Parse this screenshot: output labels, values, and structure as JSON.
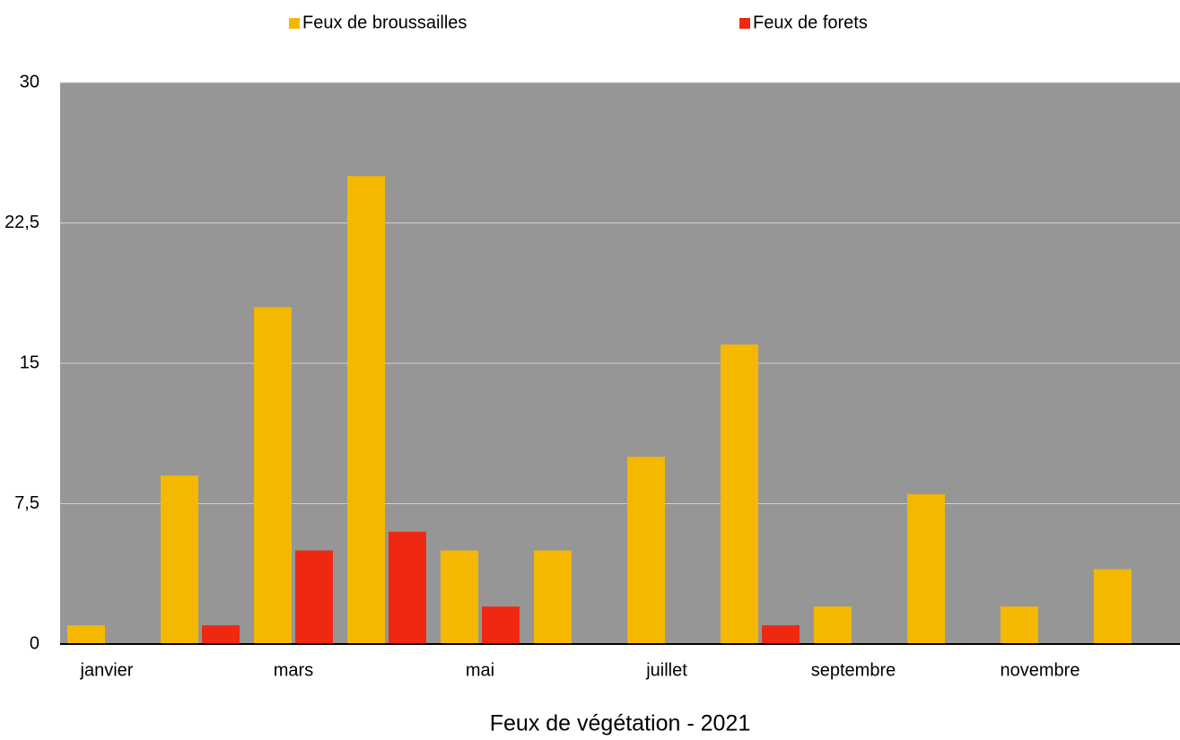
{
  "chart_data": {
    "type": "bar",
    "title": "Feux de végétation - 2021",
    "categories": [
      "janvier",
      null,
      "mars",
      null,
      "mai",
      null,
      "juillet",
      null,
      "septembre",
      null,
      "novembre",
      null
    ],
    "series": [
      {
        "name": "Feux de broussailles",
        "color": "#f5b800",
        "values": [
          1,
          9,
          18,
          25,
          5,
          5,
          10,
          16,
          2,
          8,
          2,
          4
        ]
      },
      {
        "name": "Feux de forets",
        "color": "#ef2812",
        "values": [
          0,
          1,
          5,
          6,
          2,
          0,
          0,
          1,
          0,
          0,
          0,
          0
        ]
      }
    ],
    "ylim": [
      0,
      30
    ],
    "yticks": [
      0,
      {
        "value": 7.5,
        "label": "7,5"
      },
      15,
      {
        "value": 22.5,
        "label": "22,5"
      },
      30
    ],
    "grid": true,
    "legend": "top"
  }
}
